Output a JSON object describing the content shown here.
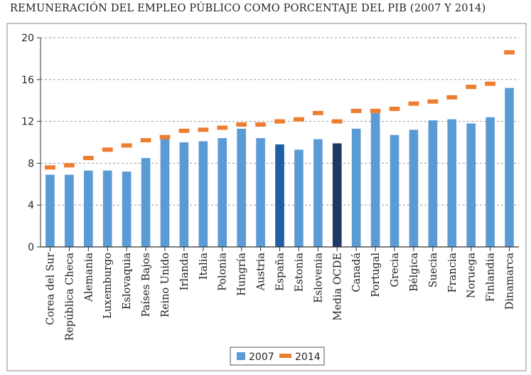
{
  "chart_data": {
    "type": "bar",
    "title": "REMUNERACIÓN DEL EMPLEO PÚBLICO COMO PORCENTAJE DEL PIB (2007 Y 2014)",
    "xlabel": "",
    "ylabel": "",
    "ylim": [
      0,
      20
    ],
    "yticks": [
      "0",
      "4",
      "8",
      "12",
      "16",
      "20"
    ],
    "grid": true,
    "legend_position": "bottom-center",
    "categories": [
      "Corea del Sur",
      "República Checa",
      "Alemania",
      "Luxemburgo",
      "Eslovaquia",
      "Países Bajos",
      "Reino Unido",
      "Irlanda",
      "Italia",
      "Polonia",
      "Hungría",
      "Austria",
      "España",
      "Estonia",
      "Eslovenia",
      "Media OCDE",
      "Canadá",
      "Portugal",
      "Grecia",
      "Bélgica",
      "Suecia",
      "Francia",
      "Noruega",
      "Finlandia",
      "Dinamarca"
    ],
    "series": [
      {
        "name": "2007",
        "kind": "bar",
        "color": "#5b9bd5",
        "values": [
          6.9,
          6.9,
          7.3,
          7.3,
          7.2,
          8.5,
          10.4,
          10.0,
          10.1,
          10.4,
          11.3,
          10.4,
          9.8,
          9.3,
          10.3,
          9.9,
          11.3,
          12.8,
          10.7,
          11.2,
          12.1,
          12.2,
          11.8,
          12.4,
          15.2
        ],
        "highlight_colors": {
          "España": "#1f5fa3",
          "Media OCDE": "#1f3864"
        }
      },
      {
        "name": "2014",
        "kind": "marker",
        "color": "#ed7d31",
        "values": [
          7.6,
          7.8,
          8.5,
          9.3,
          9.7,
          10.2,
          10.5,
          11.1,
          11.2,
          11.4,
          11.7,
          11.7,
          12.0,
          12.2,
          12.8,
          12.0,
          13.0,
          13.0,
          13.2,
          13.7,
          13.9,
          14.3,
          15.3,
          15.6,
          18.6
        ]
      }
    ]
  }
}
